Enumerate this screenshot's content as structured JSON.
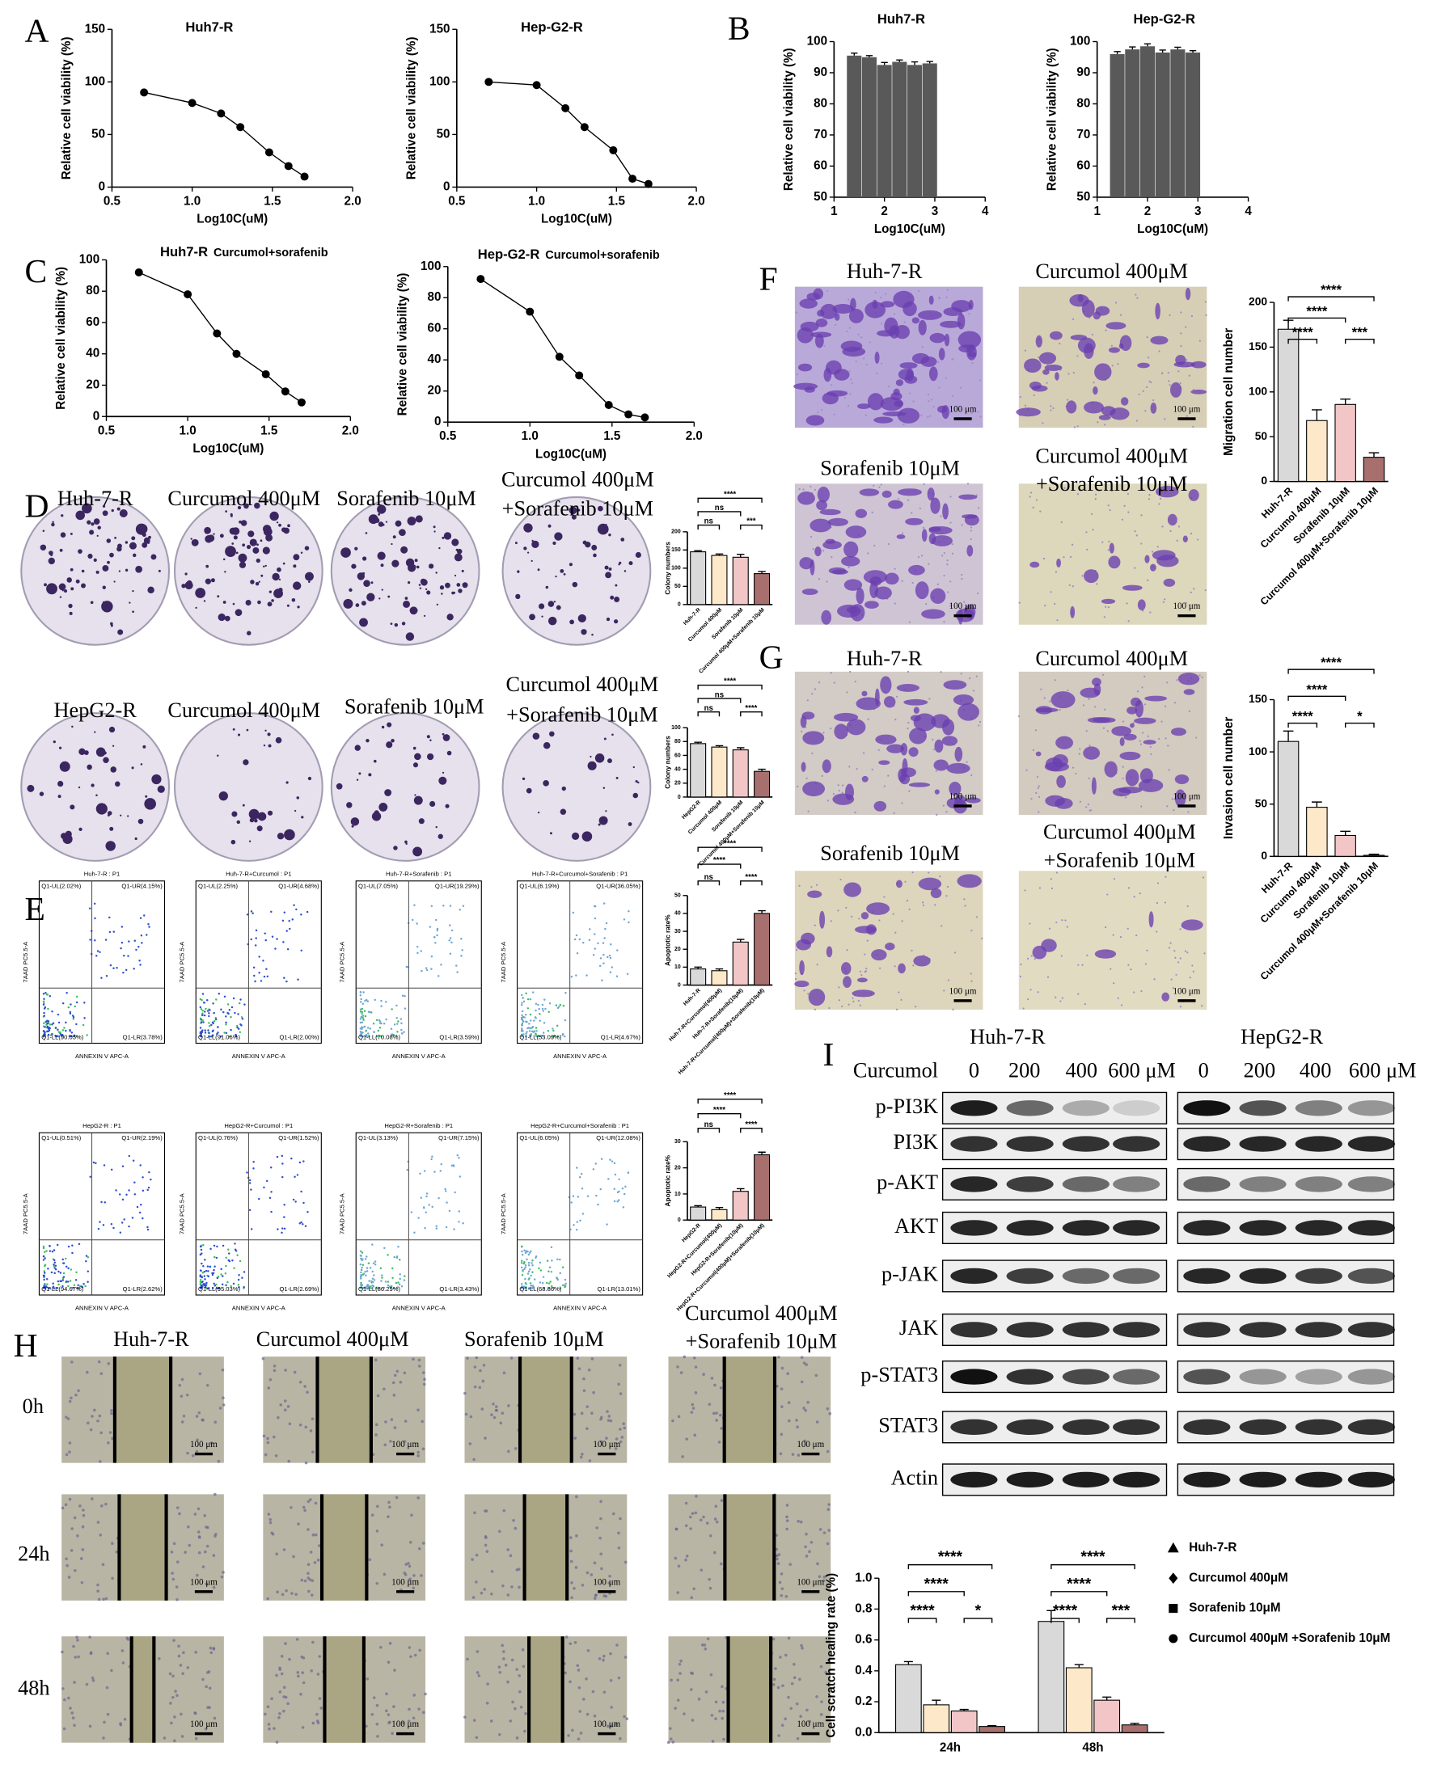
{
  "figure": {
    "letters": [
      "A",
      "B",
      "C",
      "D",
      "E",
      "F",
      "G",
      "H",
      "I"
    ],
    "labels": [
      "Huh-7-R",
      "Curcumol 400μM",
      "Sorafenib 10μM",
      "Curcumol 400μM",
      "+Sorafenib 10μM",
      "HepG2-R",
      "Curcumol 400μM",
      "Sorafenib 10μM",
      "Curcumol 400μM",
      "+Sorafenib 10μM",
      "Huh-7-R",
      "Curcumol 400μM",
      "Sorafenib 10μM",
      "Curcumol 400μM",
      "+Sorafenib 10μM",
      "Huh-7-R",
      "Curcumol 400μM",
      "Sorafenib 10μM",
      "Curcumol 400μM",
      "+Sorafenib 10μM",
      "Huh-7-R",
      "Curcumol 400μM",
      "Sorafenib 10μM",
      "Curcumol 400μM",
      "+Sorafenib 10μM",
      "0h",
      "24h",
      "48h",
      "Huh-7-R",
      "HepG2-R",
      "Curcumol",
      "0",
      "200",
      "400",
      "600 μM",
      "0",
      "200",
      "400",
      "600 μM",
      "p-PI3K",
      "PI3K",
      "p-AKT",
      "AKT",
      "p-JAK",
      "JAK",
      "p-STAT3",
      "STAT3",
      "Actin"
    ],
    "scale_bar": "100 μm",
    "flow_x_label": "ANNEXIN V APC-A",
    "flow_y_label": "7AAD PC5.5-A",
    "flow": [
      {
        "title": "Huh-7-R : P1",
        "ul": "Q1-UL(2.02%)",
        "ur": "Q1-UR(4.15%)",
        "ll": "Q1-LL(90.05%)",
        "lr": "Q1-LR(3.78%)"
      },
      {
        "title": "Huh-7-R+Curcumol : P1",
        "ul": "Q1-UL(2.25%)",
        "ur": "Q1-UR(4.68%)",
        "ll": "Q1-LL(91.06%)",
        "lr": "Q1-LR(2.00%)"
      },
      {
        "title": "Huh-7-R+Sorafenib : P1",
        "ul": "Q1-UL(7.05%)",
        "ur": "Q1-UR(19.29%)",
        "ll": "Q1-LL(70.08%)",
        "lr": "Q1-LR(3.59%)"
      },
      {
        "title": "Huh-7-R+Curcumol+Sorafenib : P1",
        "ul": "Q1-UL(6.19%)",
        "ur": "Q1-UR(36.05%)",
        "ll": "Q1-LL(53.09%)",
        "lr": "Q1-LR(4.67%)"
      },
      {
        "title": "HepG2-R : P1",
        "ul": "Q1-UL(0.51%)",
        "ur": "Q1-UR(2.19%)",
        "ll": "Q1-LL(94.67%)",
        "lr": "Q1-LR(2.62%)"
      },
      {
        "title": "HepG2-R+Curcumol : P1",
        "ul": "Q1-UL(0.76%)",
        "ur": "Q1-UR(1.52%)",
        "ll": "Q1-LL(95.03%)",
        "lr": "Q1-LR(2.69%)"
      },
      {
        "title": "HepG2-R+Sorafenib : P1",
        "ul": "Q1-UL(3.13%)",
        "ur": "Q1-UR(7.15%)",
        "ll": "Q1-LL(86.29%)",
        "lr": "Q1-LR(3.43%)"
      },
      {
        "title": "HepG2-R+Curcumol+Sorafenib : P1",
        "ul": "Q1-UL(6.05%)",
        "ur": "Q1-UR(12.08%)",
        "ll": "Q1-LL(68.86%)",
        "lr": "Q1-LR(13.01%)"
      }
    ]
  },
  "chart_data": [
    {
      "type": "line",
      "title": "Huh7-R",
      "x": [
        0.7,
        1.0,
        1.18,
        1.3,
        1.48,
        1.6,
        1.7
      ],
      "values": [
        90,
        80,
        70,
        57,
        33,
        20,
        10
      ],
      "color": "#000000",
      "xlim": [
        0.5,
        2.0
      ],
      "xticks": [
        0.5,
        {
          "value": 1,
          "label": "1.0"
        },
        1.5,
        {
          "value": 2,
          "label": "2.0"
        }
      ],
      "ylim": [
        0,
        150
      ],
      "yticks": [
        0,
        50,
        100,
        150
      ],
      "xlabel": "Log10C(uM)",
      "ylabel": "Relative cell viability (%)"
    },
    {
      "type": "line",
      "title": "Hep-G2-R",
      "x": [
        0.7,
        1.0,
        1.18,
        1.3,
        1.48,
        1.6,
        1.7
      ],
      "values": [
        100,
        97,
        75,
        57,
        35,
        8,
        3
      ],
      "color": "#000000",
      "xlim": [
        0.5,
        2.0
      ],
      "xticks": [
        0.5,
        {
          "value": 1,
          "label": "1.0"
        },
        1.5,
        {
          "value": 2,
          "label": "2.0"
        }
      ],
      "ylim": [
        0,
        150
      ],
      "yticks": [
        0,
        50,
        100,
        150
      ],
      "xlabel": "Log10C(uM)",
      "ylabel": "Relative cell viability (%)"
    },
    {
      "type": "bar",
      "title": "Huh7-R",
      "x": [
        1.4,
        1.7,
        2.0,
        2.3,
        2.6,
        2.9
      ],
      "values": [
        95.5,
        95,
        92.5,
        93.5,
        92.5,
        93
      ],
      "errors": [
        0.8,
        0.5,
        0.8,
        0.6,
        1,
        0.6
      ],
      "color": "#595959",
      "xlim": [
        1,
        4
      ],
      "xticks": [
        1,
        2,
        3,
        4
      ],
      "ylim": [
        50,
        100
      ],
      "yticks": [
        50,
        60,
        70,
        80,
        90,
        100
      ],
      "xlabel": "Log10C(uM)",
      "ylabel": "Relative cell viability (%)"
    },
    {
      "type": "bar",
      "title": "Hep-G2-R",
      "x": [
        1.4,
        1.7,
        2.0,
        2.3,
        2.6,
        2.9
      ],
      "values": [
        96,
        97.5,
        98.5,
        96.5,
        97.5,
        96.5
      ],
      "errors": [
        0.8,
        0.8,
        0.8,
        0.8,
        0.7,
        0.6
      ],
      "color": "#595959",
      "xlim": [
        1,
        4
      ],
      "xticks": [
        1,
        2,
        3,
        4
      ],
      "ylim": [
        50,
        100
      ],
      "yticks": [
        50,
        60,
        70,
        80,
        90,
        100
      ],
      "xlabel": "Log10C(uM)",
      "ylabel": "Relative cell viability (%)"
    },
    {
      "type": "line",
      "title": "Huh7-R",
      "subtitle": "Curcumol+sorafenib",
      "x": [
        0.7,
        1.0,
        1.18,
        1.3,
        1.48,
        1.6,
        1.7
      ],
      "values": [
        92,
        78,
        53,
        40,
        27,
        16,
        9
      ],
      "color": "#000000",
      "xlim": [
        0.5,
        2.0
      ],
      "xticks": [
        0.5,
        {
          "value": 1,
          "label": "1.0"
        },
        1.5,
        {
          "value": 2,
          "label": "2.0"
        }
      ],
      "ylim": [
        0,
        100
      ],
      "yticks": [
        0,
        20,
        40,
        60,
        80,
        100
      ],
      "xlabel": "Log10C(uM)",
      "ylabel": "Relative cell viability (%)"
    },
    {
      "type": "line",
      "title": "Hep-G2-R",
      "subtitle": "Curcumol+sorafenib",
      "x": [
        0.7,
        1.0,
        1.18,
        1.3,
        1.48,
        1.6,
        1.7
      ],
      "values": [
        92,
        71,
        42,
        30,
        11,
        5,
        3
      ],
      "color": "#000000",
      "xlim": [
        0.5,
        2.0
      ],
      "xticks": [
        0.5,
        {
          "value": 1,
          "label": "1.0"
        },
        1.5,
        {
          "value": 2,
          "label": "2.0"
        }
      ],
      "ylim": [
        0,
        100
      ],
      "yticks": [
        0,
        20,
        40,
        60,
        80,
        100
      ],
      "xlabel": "Log10C(uM)",
      "ylabel": "Relative cell viability (%)"
    },
    {
      "type": "bar",
      "categories": [
        "Huh-7-R",
        "Curcumol 400μM",
        "Sorafenib 10μM",
        "Curcumol 400μM+Sorafenib 10μM"
      ],
      "values": [
        145,
        135,
        130,
        85
      ],
      "errors": [
        3,
        4,
        8,
        6
      ],
      "colors": [
        "#d9d9d9",
        "#fde9c9",
        "#f2c6c6",
        "#a86f6f"
      ],
      "ylim": [
        0,
        200
      ],
      "yticks": [
        0,
        50,
        100,
        150,
        200
      ],
      "ylabel": "Colony numbers",
      "annotations": [
        "****",
        "ns",
        "ns",
        "***"
      ]
    },
    {
      "type": "bar",
      "categories": [
        "HepG2-R",
        "Curcumol 400μM",
        "Sorafenib 10μM",
        "Curcumol 400μM+Sorafenib 10μM"
      ],
      "values": [
        77,
        72,
        68,
        37
      ],
      "errors": [
        2,
        2,
        3,
        3
      ],
      "colors": [
        "#d9d9d9",
        "#fde9c9",
        "#f2c6c6",
        "#a86f6f"
      ],
      "ylim": [
        0,
        100
      ],
      "yticks": [
        0,
        20,
        40,
        60,
        80,
        100
      ],
      "ylabel": "Colony numbers",
      "annotations": [
        "****",
        "ns",
        "ns",
        "****"
      ]
    },
    {
      "type": "bar",
      "categories": [
        "Huh-7-R",
        "Huh-7-R+Curcumol(400μM)",
        "Huh-7-R+Sorafenib(10μM)",
        "Huh-7-R+Curcumol(400μM)+Sorafenib(10μM)"
      ],
      "values": [
        9,
        8,
        24,
        40
      ],
      "errors": [
        1,
        1,
        1.5,
        1.5
      ],
      "colors": [
        "#d9d9d9",
        "#fde9c9",
        "#f2c6c6",
        "#a86f6f"
      ],
      "ylim": [
        0,
        50
      ],
      "yticks": [
        0,
        10,
        20,
        30,
        40,
        50
      ],
      "ylabel": "Apoptotic rate%",
      "annotations": [
        "****",
        "****",
        "ns",
        "****"
      ]
    },
    {
      "type": "bar",
      "categories": [
        "HepG2-R",
        "HepG2-R+Curcumol(400μM)",
        "HepG2-R+Sorafenib(10μM)",
        "HepG2-R+Curcumol(400μM)+Sorafenib(10μM)"
      ],
      "values": [
        5,
        4,
        11,
        25
      ],
      "errors": [
        0.5,
        0.8,
        1,
        1
      ],
      "colors": [
        "#d9d9d9",
        "#fde9c9",
        "#f2c6c6",
        "#a86f6f"
      ],
      "ylim": [
        0,
        30
      ],
      "yticks": [
        0,
        10,
        20,
        30
      ],
      "ylabel": "Apoptotic rate%",
      "annotations": [
        "****",
        "****",
        "ns",
        "****"
      ]
    },
    {
      "type": "bar",
      "categories": [
        "Huh-7-R",
        "Curcumol 400μM",
        "Sorafenib 10μM",
        "Curcumol 400μM+Sorafenib 10μM"
      ],
      "values": [
        170,
        68,
        86,
        27
      ],
      "errors": [
        10,
        12,
        6,
        5
      ],
      "colors": [
        "#d9d9d9",
        "#fde9c9",
        "#f2c6c6",
        "#a86f6f"
      ],
      "ylim": [
        0,
        200
      ],
      "yticks": [
        0,
        50,
        100,
        150,
        200
      ],
      "ylabel": "Migration cell number",
      "annotations": [
        "****",
        "****",
        "****",
        "***"
      ]
    },
    {
      "type": "bar",
      "categories": [
        "Huh-7-R",
        "Curcumol 400μM",
        "Sorafenib 10μM",
        "Curcumol 400μM+Sorafenib 10μM"
      ],
      "values": [
        110,
        47,
        20,
        1
      ],
      "errors": [
        10,
        5,
        4,
        1
      ],
      "colors": [
        "#d9d9d9",
        "#fde9c9",
        "#f2c6c6",
        "#a86f6f"
      ],
      "ylim": [
        0,
        150
      ],
      "yticks": [
        0,
        50,
        100,
        150
      ],
      "ylabel": "Invasion cell number",
      "annotations": [
        "****",
        "****",
        "****",
        "*"
      ]
    },
    {
      "type": "bar",
      "categories": [
        "24h",
        "48h"
      ],
      "series": [
        {
          "name": "Huh-7-R",
          "color": "#d9d9d9",
          "values": [
            0.44,
            0.72
          ],
          "errors": [
            0.02,
            0.07
          ]
        },
        {
          "name": "Curcumol 400μM",
          "color": "#fde9c9",
          "values": [
            0.18,
            0.42
          ],
          "errors": [
            0.03,
            0.02
          ]
        },
        {
          "name": "Sorafenib 10μM",
          "color": "#f2c6c6",
          "values": [
            0.14,
            0.21
          ],
          "errors": [
            0.01,
            0.02
          ]
        },
        {
          "name": "Curcumol 400μM +Sorafenib 10μM",
          "color": "#a86f6f",
          "values": [
            0.04,
            0.05
          ],
          "errors": [
            0.005,
            0.01
          ]
        }
      ],
      "ylim": [
        0,
        1
      ],
      "yticks": [
        {
          "value": 0,
          "label": "0.0"
        },
        0.2,
        0.4,
        0.6,
        0.8,
        {
          "value": 1,
          "label": "1.0"
        }
      ],
      "ylabel": "Cell scratch healing rate (%)",
      "annotations": [
        [
          "****",
          "****",
          "****",
          "*"
        ],
        [
          "****",
          "****",
          "****",
          "***"
        ]
      ]
    }
  ]
}
